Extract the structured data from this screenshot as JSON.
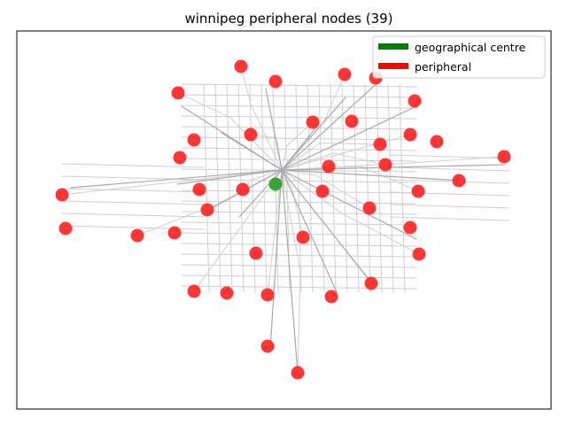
{
  "title": "winnipeg peripheral nodes (39)",
  "legend": {
    "items": [
      {
        "label": "geographical centre",
        "color": "#008000"
      },
      {
        "label": "peripheral",
        "color": "#ff0000"
      }
    ],
    "placement": "top-right"
  },
  "colors": {
    "peripheral_node": "#ff2020",
    "centre_node": "#2ca02c",
    "minor_street": "#cfcfcf",
    "major_street": "#a9a9a9",
    "frame": "#000000"
  },
  "chart_data": {
    "type": "scatter",
    "title": "winnipeg peripheral nodes (39)",
    "series": [
      {
        "name": "geographical centre",
        "count": 1
      },
      {
        "name": "peripheral",
        "count": 39
      }
    ],
    "grid": false,
    "axes_ticks": false
  }
}
